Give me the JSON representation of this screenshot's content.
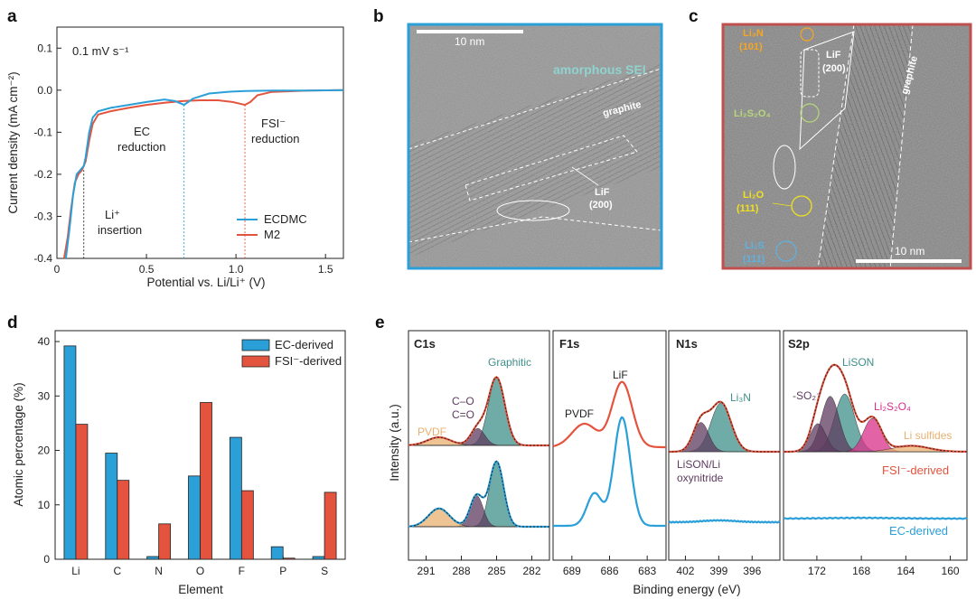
{
  "chart_data": [
    {
      "panel": "a",
      "type": "line",
      "title": "",
      "xlabel": "Potential vs. Li/Li⁺ (V)",
      "ylabel": "Current density (mA cm⁻²)",
      "xlim": [
        0,
        1.6
      ],
      "ylim": [
        -0.4,
        0.15
      ],
      "xticks": [
        "0",
        "0.5",
        "1.0",
        "1.5"
      ],
      "yticks": [
        "0.1",
        "0.0",
        "-0.1",
        "-0.2",
        "-0.3",
        "-0.4"
      ],
      "annotations": {
        "rate": "0.1 mV s⁻¹",
        "ec_line1": "EC",
        "ec_line2": "reduction",
        "fsi_line1": "FSI⁻",
        "fsi_line2": "reduction",
        "li_line1": "Li⁺",
        "li_line2": "insertion"
      },
      "vlines": [
        0.15,
        0.71,
        1.05
      ],
      "series": [
        {
          "name": "ECDMC",
          "color": "#2a9fd8",
          "x": [
            0.05,
            0.07,
            0.09,
            0.11,
            0.13,
            0.15,
            0.16,
            0.18,
            0.2,
            0.23,
            0.3,
            0.4,
            0.5,
            0.6,
            0.66,
            0.71,
            0.76,
            0.85,
            0.95,
            1.05,
            1.2,
            1.4,
            1.6
          ],
          "y": [
            -0.4,
            -0.33,
            -0.25,
            -0.2,
            -0.19,
            -0.18,
            -0.16,
            -0.1,
            -0.065,
            -0.05,
            -0.042,
            -0.035,
            -0.028,
            -0.022,
            -0.026,
            -0.035,
            -0.02,
            -0.008,
            -0.004,
            -0.002,
            -0.001,
            -0.001,
            0.0
          ]
        },
        {
          "name": "M2",
          "color": "#e4533d",
          "x": [
            0.04,
            0.06,
            0.08,
            0.1,
            0.12,
            0.14,
            0.16,
            0.18,
            0.2,
            0.23,
            0.3,
            0.4,
            0.5,
            0.6,
            0.7,
            0.8,
            0.9,
            0.98,
            1.02,
            1.05,
            1.08,
            1.12,
            1.2,
            1.4,
            1.6
          ],
          "y": [
            -0.4,
            -0.35,
            -0.28,
            -0.22,
            -0.2,
            -0.19,
            -0.17,
            -0.12,
            -0.08,
            -0.058,
            -0.05,
            -0.042,
            -0.035,
            -0.03,
            -0.026,
            -0.024,
            -0.024,
            -0.028,
            -0.032,
            -0.035,
            -0.028,
            -0.012,
            -0.004,
            -0.001,
            0.0
          ]
        }
      ],
      "legend": [
        "ECDMC",
        "M2"
      ]
    },
    {
      "panel": "d",
      "type": "bar",
      "xlabel": "Element",
      "ylabel": "Atomic percentage (%)",
      "ylim": [
        0,
        42
      ],
      "yticks": [
        "0",
        "10",
        "20",
        "30",
        "40"
      ],
      "categories": [
        "Li",
        "C",
        "N",
        "O",
        "F",
        "P",
        "S"
      ],
      "series": [
        {
          "name": "EC-derived",
          "color": "#2a9fd8",
          "values": [
            39.2,
            19.5,
            0.5,
            15.3,
            22.4,
            2.3,
            0.5
          ]
        },
        {
          "name": "FSI⁻-derived",
          "color": "#e4533d",
          "values": [
            24.8,
            14.5,
            6.5,
            28.8,
            12.6,
            0.2,
            12.3
          ]
        }
      ],
      "legend": [
        "EC-derived",
        "FSI⁻-derived"
      ]
    },
    {
      "panel": "e",
      "type": "line",
      "xlabel": "Binding energy (eV)",
      "ylabel": "Intensity (a.u.)",
      "subpanels": [
        {
          "name": "C1s",
          "xlim": [
            292.5,
            280.5
          ],
          "xticks": [
            "291",
            "288",
            "285",
            "282"
          ],
          "peaks": [
            "Graphitic",
            "C–O",
            "C=O",
            "PVDF"
          ]
        },
        {
          "name": "F1s",
          "xlim": [
            690.5,
            681.5
          ],
          "xticks": [
            "689",
            "686",
            "683"
          ],
          "peaks": [
            "LiF",
            "PVDF"
          ]
        },
        {
          "name": "N1s",
          "xlim": [
            403.5,
            393.5
          ],
          "xticks": [
            "402",
            "399",
            "396"
          ],
          "peaks": [
            "Li₃N",
            "LiSON/Li",
            "oxynitride"
          ]
        },
        {
          "name": "S2p",
          "xlim": [
            175,
            158.5
          ],
          "xticks": [
            "172",
            "168",
            "164",
            "160"
          ],
          "peaks": [
            "LiSON",
            "-SO₂⁻",
            "Li₂S₂O₄",
            "Li sulfides"
          ]
        }
      ],
      "series_labels": [
        "FSI⁻-derived",
        "EC-derived"
      ]
    }
  ],
  "panel_labels": [
    "a",
    "b",
    "c",
    "d",
    "e"
  ],
  "tem_b": {
    "scale": "10 nm",
    "sei": "amorphous SEI",
    "graphite": "graphite",
    "lif": "LiF",
    "lif_plane": "(200)"
  },
  "tem_c": {
    "scale": "10 nm",
    "li3n": "Li₃N",
    "li3n_plane": "(101)",
    "lif": "LiF",
    "lif_plane": "(200)",
    "graphite": "graphite",
    "li2s2o4": "Li₂S₂O₄",
    "li2o": "Li₂O",
    "li2o_plane": "(111)",
    "li2s": "Li₂S",
    "li2s_plane": "(111)"
  },
  "colors": {
    "ec": "#2a9fd8",
    "fsi": "#e4533d",
    "graphitic_fill": "#3f8f8a",
    "co_fill": "#5d3b5f",
    "pvdf_fill": "#e8b070",
    "lison_fill": "#3f8f8a",
    "sox_fill": "#5d3b5f",
    "s2o4_fill": "#d8308a",
    "sulf_fill": "#e8b070",
    "tem_b_border": "#2a9fd8",
    "tem_c_border": "#c0504d"
  }
}
